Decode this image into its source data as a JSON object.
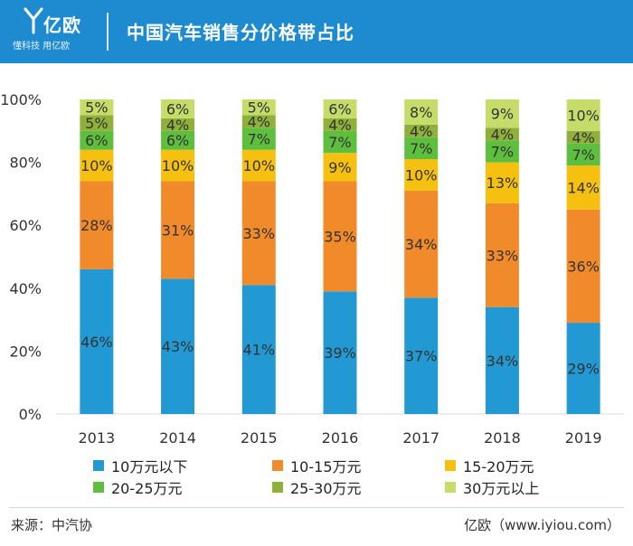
{
  "header": {
    "brand": "亿欧",
    "slogan": "懂科技 用亿欧",
    "title": "中国汽车销售分价格带占比"
  },
  "footer": {
    "source": "来源：中汽协",
    "credit": "亿欧（www.iyiou.com）"
  },
  "colors": {
    "header_bg": "#1e8ad0",
    "series": [
      "#2399d3",
      "#f18a2a",
      "#f5c00f",
      "#5ebf3e",
      "#8fb13b",
      "#c5dc6a"
    ]
  },
  "chart_data": {
    "type": "bar",
    "stacked": true,
    "title": "中国汽车销售分价格带占比",
    "xlabel": "",
    "ylabel": "",
    "ylim": [
      0,
      100
    ],
    "yticks": [
      "0%",
      "20%",
      "40%",
      "60%",
      "80%",
      "100%"
    ],
    "categories": [
      "2013",
      "2014",
      "2015",
      "2016",
      "2017",
      "2018",
      "2019"
    ],
    "series": [
      {
        "name": "10万元以下",
        "values": [
          46,
          43,
          41,
          39,
          37,
          34,
          29
        ],
        "labels": [
          "46%",
          "43%",
          "41%",
          "39%",
          "37%",
          "34%",
          "29%"
        ]
      },
      {
        "name": "10-15万元",
        "values": [
          28,
          31,
          33,
          35,
          34,
          33,
          36
        ],
        "labels": [
          "28%",
          "31%",
          "33%",
          "35%",
          "34%",
          "33%",
          "36%"
        ]
      },
      {
        "name": "15-20万元",
        "values": [
          10,
          10,
          10,
          9,
          10,
          13,
          14
        ],
        "labels": [
          "10%",
          "10%",
          "10%",
          "9%",
          "10%",
          "13%",
          "14%"
        ]
      },
      {
        "name": "20-25万元",
        "values": [
          6,
          6,
          7,
          7,
          7,
          7,
          7
        ],
        "labels": [
          "6%",
          "6%",
          "7%",
          "7%",
          "7%",
          "7%",
          "7%"
        ]
      },
      {
        "name": "25-30万元",
        "values": [
          5,
          4,
          4,
          4,
          4,
          4,
          4
        ],
        "labels": [
          "5%",
          "4%",
          "4%",
          "4%",
          "4%",
          "4%",
          "4%"
        ]
      },
      {
        "name": "30万元以上",
        "values": [
          5,
          6,
          5,
          6,
          8,
          9,
          10
        ],
        "labels": [
          "5%",
          "6%",
          "5%",
          "6%",
          "8%",
          "9%",
          "10%"
        ]
      }
    ],
    "legend_position": "bottom"
  }
}
